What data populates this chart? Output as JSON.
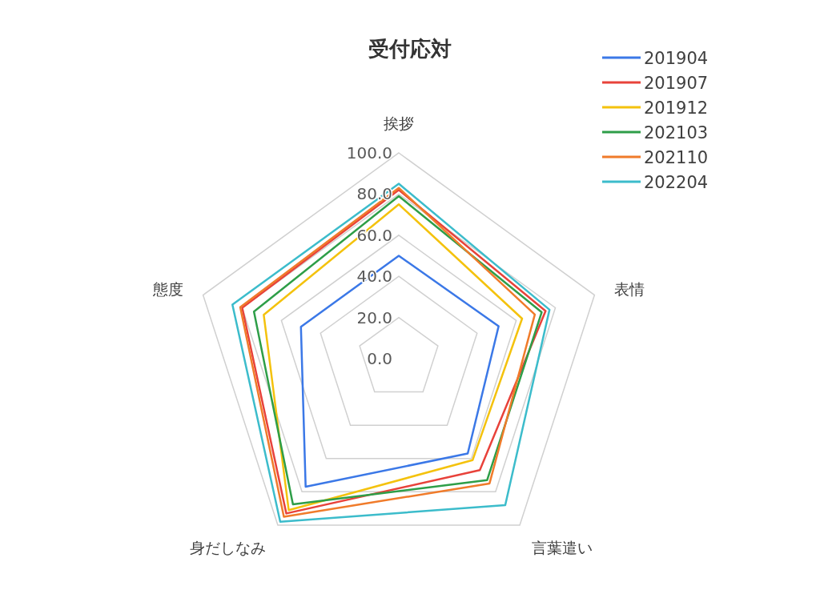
{
  "chart_data": {
    "type": "radar",
    "title": "受付応対",
    "categories": [
      "挨拶",
      "表情",
      "言葉遣い",
      "身だしなみ",
      "態度"
    ],
    "series": [
      {
        "name": "201904",
        "color": "#3b78e7",
        "values": [
          50,
          51,
          57,
          77,
          50
        ]
      },
      {
        "name": "201907",
        "color": "#e8423a",
        "values": [
          82,
          75,
          67,
          93,
          80
        ]
      },
      {
        "name": "201912",
        "color": "#f4c20d",
        "values": [
          75,
          63,
          61,
          91,
          69
        ]
      },
      {
        "name": "202103",
        "color": "#2e9e48",
        "values": [
          79,
          73,
          73,
          87.5,
          74
        ]
      },
      {
        "name": "202110",
        "color": "#f07b2a",
        "values": [
          83,
          69.5,
          75,
          95,
          81
        ]
      },
      {
        "name": "202204",
        "color": "#3cbccb",
        "values": [
          85,
          77,
          88,
          98,
          85
        ]
      }
    ],
    "ylim": [
      0,
      100
    ],
    "yticks": [
      {
        "value": 0,
        "label": "0.0"
      },
      {
        "value": 20,
        "label": "20.0"
      },
      {
        "value": 40,
        "label": "40.0"
      },
      {
        "value": 60,
        "label": "60.0"
      },
      {
        "value": 80,
        "label": "80.0"
      },
      {
        "value": 100,
        "label": "100.0"
      }
    ],
    "grid": true,
    "legend": "top right",
    "marker": "none"
  }
}
